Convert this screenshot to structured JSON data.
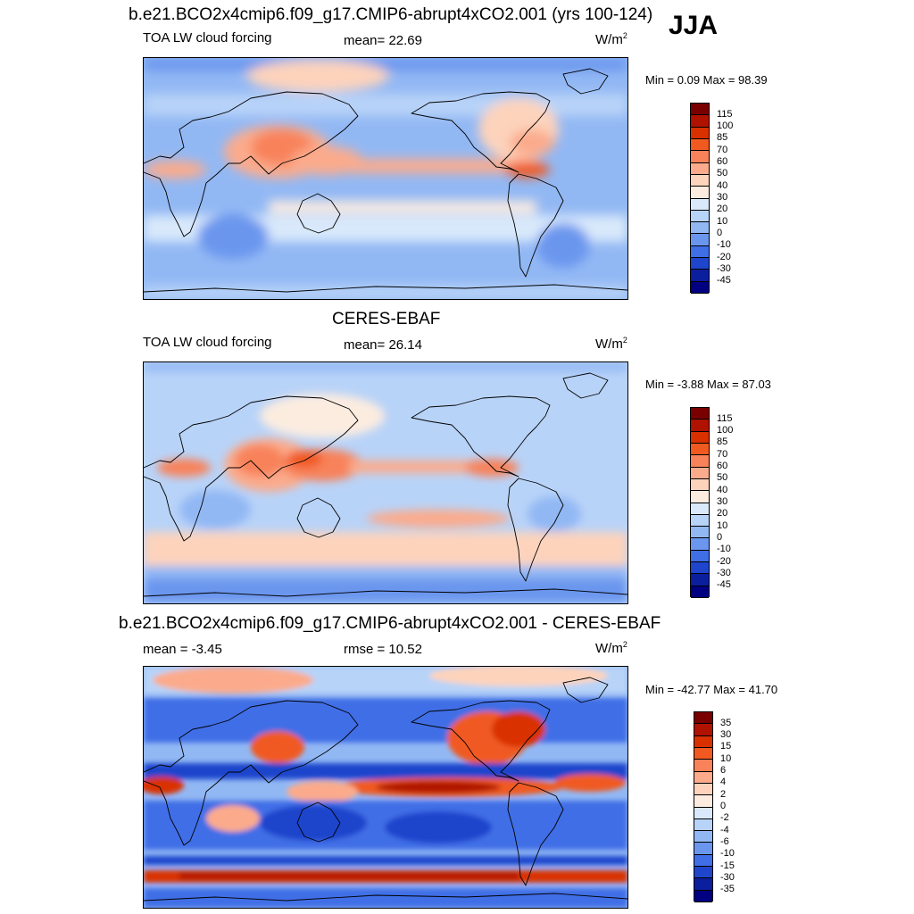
{
  "season": "JJA",
  "units_base": "W/m",
  "units_exp": "2",
  "panels": [
    {
      "title": "b.e21.BCO2x4cmip6.f09_g17.CMIP6-abrupt4xCO2.001 (yrs 100-124)",
      "left_label": "TOA LW cloud forcing",
      "center_label": "mean=  22.69",
      "minmax": "Min =   0.09 Max =  98.39",
      "colorbar_labels": [
        "115",
        "100",
        "85",
        "70",
        "60",
        "50",
        "40",
        "30",
        "20",
        "10",
        "0",
        "-10",
        "-20",
        "-30",
        "-45"
      ],
      "colorbar_colors": [
        "#7a0000",
        "#b01200",
        "#d93000",
        "#f05a20",
        "#f8825a",
        "#fbab8c",
        "#fdd3bc",
        "#fcece0",
        "#d9e9fb",
        "#b8d3f8",
        "#92b8f4",
        "#6a96ee",
        "#3f6ee6",
        "#1f45cc",
        "#0a1e9e",
        "#000080"
      ],
      "chart_data": {
        "type": "heatmap",
        "variable": "TOA LW cloud forcing",
        "mean": 22.69,
        "min": 0.09,
        "max": 98.39,
        "contour_levels": [
          -45,
          -30,
          -20,
          -10,
          0,
          10,
          20,
          30,
          40,
          50,
          60,
          70,
          85,
          100,
          115
        ]
      }
    },
    {
      "title": "CERES-EBAF",
      "left_label": "TOA LW cloud forcing",
      "center_label": "mean=  26.14",
      "minmax": "Min =  -3.88 Max =  87.03",
      "colorbar_labels": [
        "115",
        "100",
        "85",
        "70",
        "60",
        "50",
        "40",
        "30",
        "20",
        "10",
        "0",
        "-10",
        "-20",
        "-30",
        "-45"
      ],
      "colorbar_colors": [
        "#7a0000",
        "#b01200",
        "#d93000",
        "#f05a20",
        "#f8825a",
        "#fbab8c",
        "#fdd3bc",
        "#fcece0",
        "#d9e9fb",
        "#b8d3f8",
        "#92b8f4",
        "#6a96ee",
        "#3f6ee6",
        "#1f45cc",
        "#0a1e9e",
        "#000080"
      ],
      "chart_data": {
        "type": "heatmap",
        "variable": "TOA LW cloud forcing",
        "mean": 26.14,
        "min": -3.88,
        "max": 87.03,
        "contour_levels": [
          -45,
          -30,
          -20,
          -10,
          0,
          10,
          20,
          30,
          40,
          50,
          60,
          70,
          85,
          100,
          115
        ]
      }
    },
    {
      "title": "b.e21.BCO2x4cmip6.f09_g17.CMIP6-abrupt4xCO2.001 - CERES-EBAF",
      "left_label": "mean =  -3.45",
      "center_label": "rmse =  10.52",
      "minmax": "Min = -42.77 Max =  41.70",
      "colorbar_labels": [
        "35",
        "30",
        "15",
        "10",
        "6",
        "4",
        "2",
        "0",
        "-2",
        "-4",
        "-6",
        "-10",
        "-15",
        "-30",
        "-35"
      ],
      "colorbar_colors": [
        "#7a0000",
        "#b01200",
        "#d93000",
        "#f05a20",
        "#f8825a",
        "#fbab8c",
        "#fdd3bc",
        "#fcece0",
        "#d9e9fb",
        "#b8d3f8",
        "#92b8f4",
        "#6a96ee",
        "#3f6ee6",
        "#1f45cc",
        "#0a1e9e",
        "#000080"
      ],
      "chart_data": {
        "type": "heatmap",
        "variable": "difference",
        "mean": -3.45,
        "rmse": 10.52,
        "min": -42.77,
        "max": 41.7,
        "contour_levels": [
          -35,
          -30,
          -15,
          -10,
          -6,
          -4,
          -2,
          0,
          2,
          4,
          6,
          10,
          15,
          30,
          35
        ]
      }
    }
  ]
}
